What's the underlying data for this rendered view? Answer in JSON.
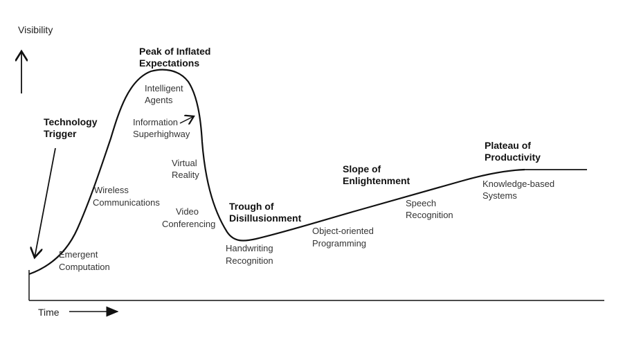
{
  "axes": {
    "y_label": "Visibility",
    "x_label": "Time"
  },
  "phases": {
    "trigger": [
      "Technology",
      "Trigger"
    ],
    "peak": [
      "Peak of Inflated",
      "Expectations"
    ],
    "trough": [
      "Trough of",
      "Disillusionment"
    ],
    "slope": [
      "Slope of",
      "Enlightenment"
    ],
    "plateau": [
      "Plateau of",
      "Productivity"
    ]
  },
  "technologies": {
    "emergent": [
      "Emergent",
      "Computation"
    ],
    "wireless": [
      "Wireless",
      "Communications"
    ],
    "intelligent": [
      "Intelligent",
      "Agents"
    ],
    "information": [
      "Information",
      "Superhighway"
    ],
    "virtual": [
      "Virtual",
      "Reality"
    ],
    "video": [
      "Video",
      "Conferencing"
    ],
    "handwriting": [
      "Handwriting",
      "Recognition"
    ],
    "object": [
      "Object-oriented",
      "Programming"
    ],
    "speech": [
      "Speech",
      "Recognition"
    ],
    "knowledge": [
      "Knowledge-based",
      "Systems"
    ]
  }
}
